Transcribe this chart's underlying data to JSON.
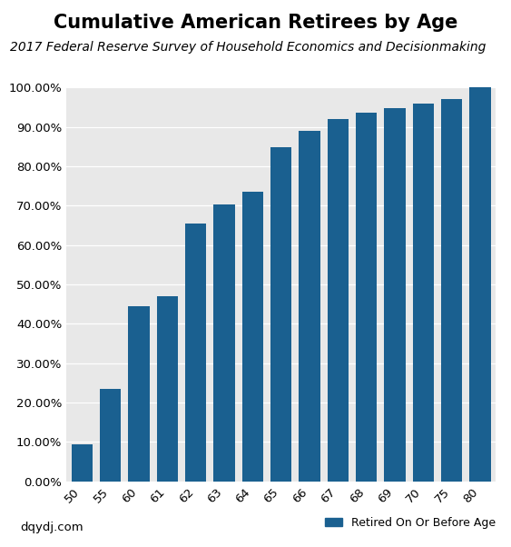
{
  "title": "Cumulative American Retirees by Age",
  "subtitle": "2017 Federal Reserve Survey of Household Economics and Decisionmaking",
  "categories": [
    "50",
    "55",
    "60",
    "61",
    "62",
    "63",
    "64",
    "65",
    "66",
    "67",
    "68",
    "69",
    "70",
    "75",
    "80"
  ],
  "values": [
    0.095,
    0.235,
    0.445,
    0.47,
    0.655,
    0.703,
    0.735,
    0.848,
    0.89,
    0.92,
    0.935,
    0.947,
    0.96,
    0.97,
    1.0
  ],
  "bar_color": "#1a6090",
  "ylim": [
    0,
    1.0
  ],
  "ytick_step": 0.1,
  "background_color": "#e8e8e8",
  "legend_label": "Retired On Or Before Age",
  "watermark": "dqydj.com",
  "title_fontsize": 15,
  "subtitle_fontsize": 10,
  "ylabel_fontsize": 10,
  "tick_fontsize": 9.5
}
